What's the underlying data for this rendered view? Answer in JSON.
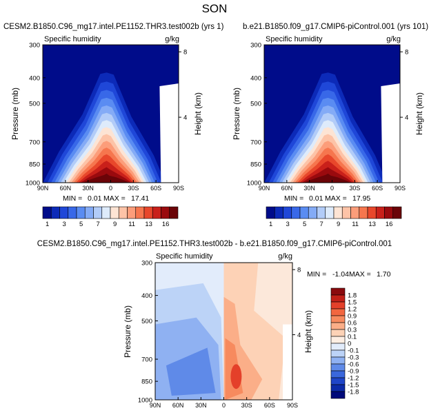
{
  "title": "SON",
  "chart_data": [
    {
      "type": "heatmap",
      "title": "CESM2.B1850.C96_mg17.intel.PE1152.THR3.test002b (yrs 1)",
      "variable": "Specific humidity",
      "units": "g/kg",
      "ylabel": "Pressure (mb)",
      "ylabel_right": "Height (km)",
      "x_ticks": [
        "90N",
        "60N",
        "30N",
        "0",
        "30S",
        "60S",
        "90S"
      ],
      "y_ticks": [
        300,
        400,
        500,
        700,
        850,
        1000
      ],
      "height_ticks": [
        8,
        4
      ],
      "min_label": "MIN =",
      "min": "0.01",
      "max_label": "MAX =",
      "max": "17.41",
      "colorbar_labels": [
        "1",
        "3",
        "5",
        "7",
        "9",
        "11",
        "13",
        "16"
      ],
      "colors": [
        "#000c8a",
        "#0c2ab8",
        "#1f47d8",
        "#3868e8",
        "#5a8cf2",
        "#84abf6",
        "#b2ccf8",
        "#deebfb",
        "#fde4d4",
        "#fdc3a7",
        "#fc9d7a",
        "#f6764e",
        "#e8472b",
        "#c9201a",
        "#9a0a0e",
        "#6b0408"
      ],
      "background": "#ffffff"
    },
    {
      "type": "heatmap",
      "title": "b.e21.B1850.f09_g17.CMIP6-piControl.001 (yrs 101)",
      "variable": "Specific humidity",
      "units": "g/kg",
      "ylabel": "Pressure (mb)",
      "ylabel_right": "Height (km)",
      "x_ticks": [
        "90N",
        "60N",
        "30N",
        "0",
        "30S",
        "60S",
        "90S"
      ],
      "y_ticks": [
        300,
        400,
        500,
        700,
        850,
        1000
      ],
      "height_ticks": [
        8,
        4
      ],
      "min_label": "MIN =",
      "min": "0.01",
      "max_label": "MAX =",
      "max": "17.95",
      "colorbar_labels": [
        "1",
        "3",
        "5",
        "7",
        "9",
        "11",
        "13",
        "16"
      ],
      "colors": [
        "#000c8a",
        "#0c2ab8",
        "#1f47d8",
        "#3868e8",
        "#5a8cf2",
        "#84abf6",
        "#b2ccf8",
        "#deebfb",
        "#fde4d4",
        "#fdc3a7",
        "#fc9d7a",
        "#f6764e",
        "#e8472b",
        "#c9201a",
        "#9a0a0e",
        "#6b0408"
      ],
      "background": "#ffffff"
    },
    {
      "type": "heatmap",
      "title": "CESM2.B1850.C96_mg17.intel.PE1152.THR3.test002b - b.e21.B1850.f09_g17.CMIP6-piControl.001",
      "variable": "Specific humidity",
      "units": "g/kg",
      "ylabel": "Pressure (mb)",
      "ylabel_right": "Height (km)",
      "x_ticks": [
        "90N",
        "60N",
        "30N",
        "0",
        "30S",
        "60S",
        "90S"
      ],
      "y_ticks": [
        300,
        400,
        500,
        700,
        850,
        1000
      ],
      "height_ticks": [
        8,
        4
      ],
      "min_label": "MIN =",
      "min": "-1.04",
      "max_label": "MAX =",
      "max": "1.70",
      "colorbar_labels": [
        "1.8",
        "1.5",
        "1.2",
        "0.9",
        "0.6",
        "0.3",
        "0.1",
        "0",
        "-0.1",
        "-0.3",
        "-0.6",
        "-0.9",
        "-1.2",
        "-1.5",
        "-1.8"
      ],
      "colors": [
        "#8a0a0e",
        "#c22018",
        "#e4402a",
        "#f2663f",
        "#f78a5e",
        "#fbae88",
        "#fdd2b6",
        "#fdeee3",
        "#e2ecfb",
        "#bcd3f7",
        "#8fb1f2",
        "#5f8ae8",
        "#3a67dc",
        "#1f45c8",
        "#0c2aa8",
        "#000a7a"
      ],
      "background": "#fce8da"
    }
  ]
}
